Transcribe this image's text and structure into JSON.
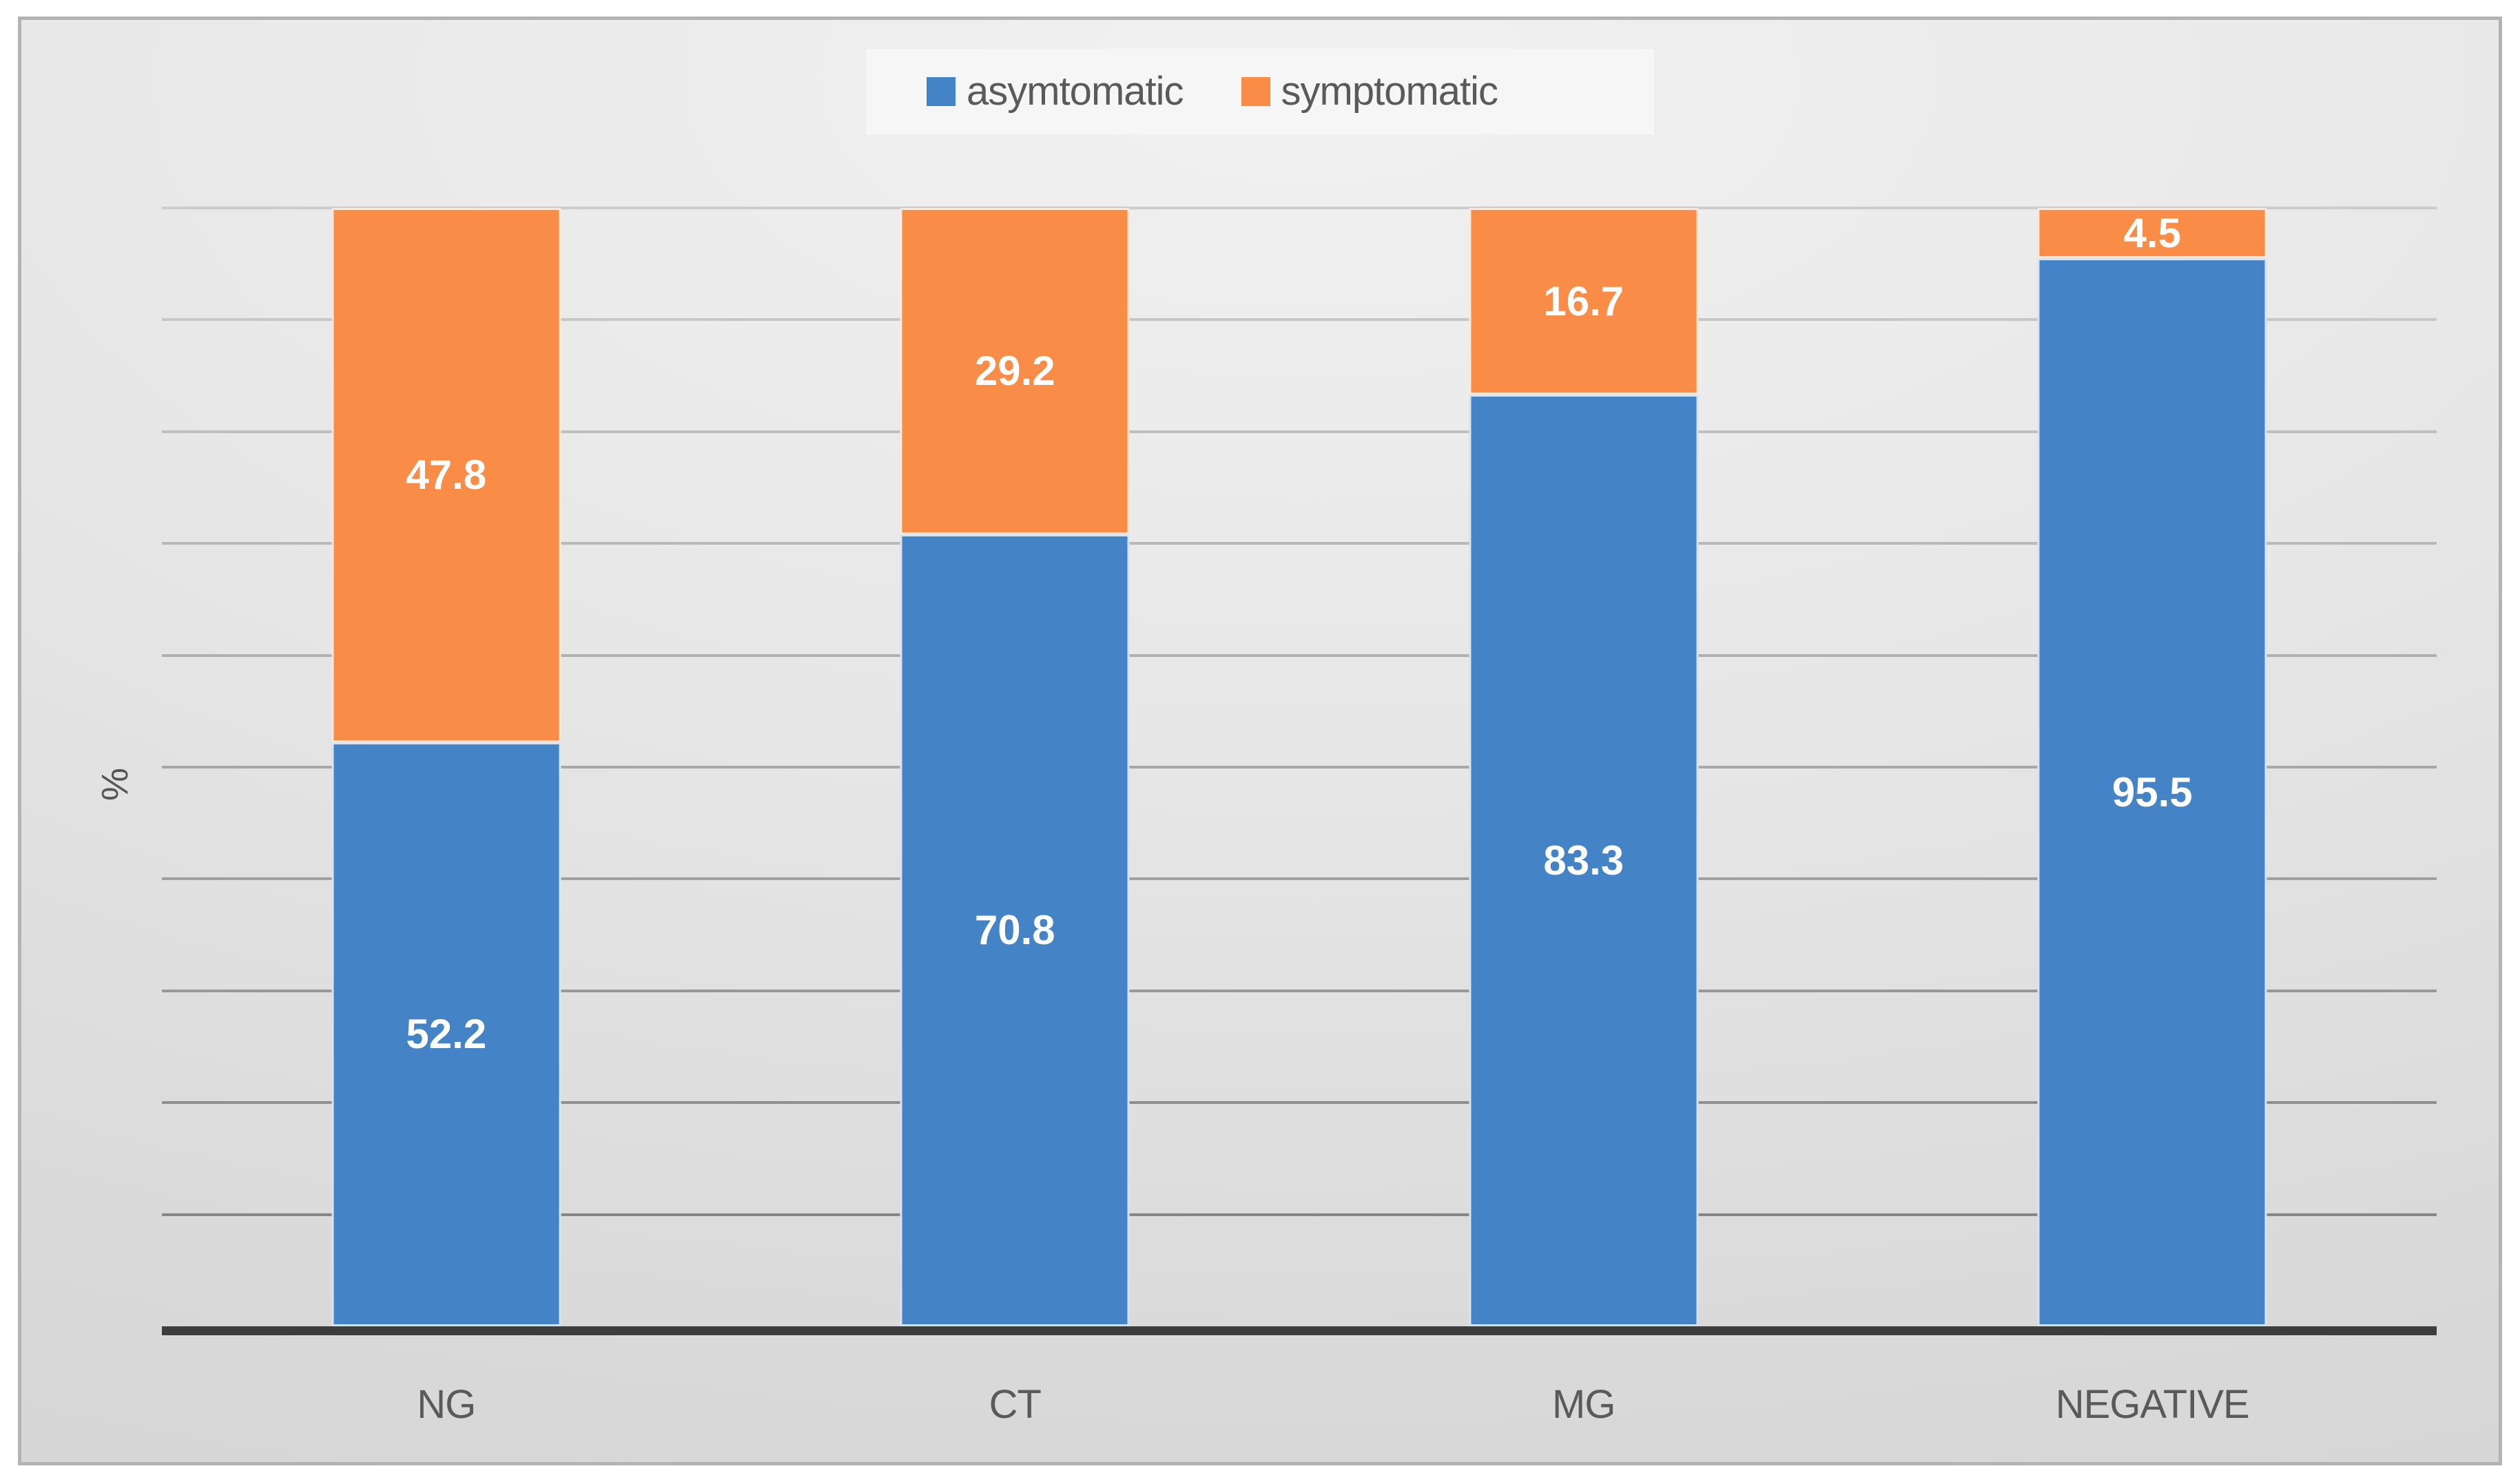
{
  "chart_data": {
    "type": "bar",
    "stacked": true,
    "title": "",
    "categories": [
      "NG",
      "CT",
      "MG",
      "NEGATIVE"
    ],
    "series": [
      {
        "name": "asymtomatic",
        "color": "#4383C6",
        "values": [
          52.2,
          70.8,
          83.3,
          95.5
        ]
      },
      {
        "name": "symptomatic",
        "color": "#F98C46",
        "values": [
          47.8,
          29.2,
          16.7,
          4.5
        ]
      }
    ],
    "xlabel": "",
    "ylabel": "%",
    "ylim": [
      0,
      100
    ],
    "gridline_interval": 10,
    "grid": true,
    "legend_position": "top-center",
    "data_label_color": "#ffffff",
    "axis_color": "#3d3d3d",
    "text_color": "#5a5a5a",
    "gridline_colors_bottom_to_top": [
      "#868686",
      "#8f8f8f",
      "#989898",
      "#a0a0a0",
      "#a8a8a8",
      "#b0b0b0",
      "#b8b8b8",
      "#bfbfbf",
      "#c6c6c6",
      "#cccccc"
    ]
  }
}
